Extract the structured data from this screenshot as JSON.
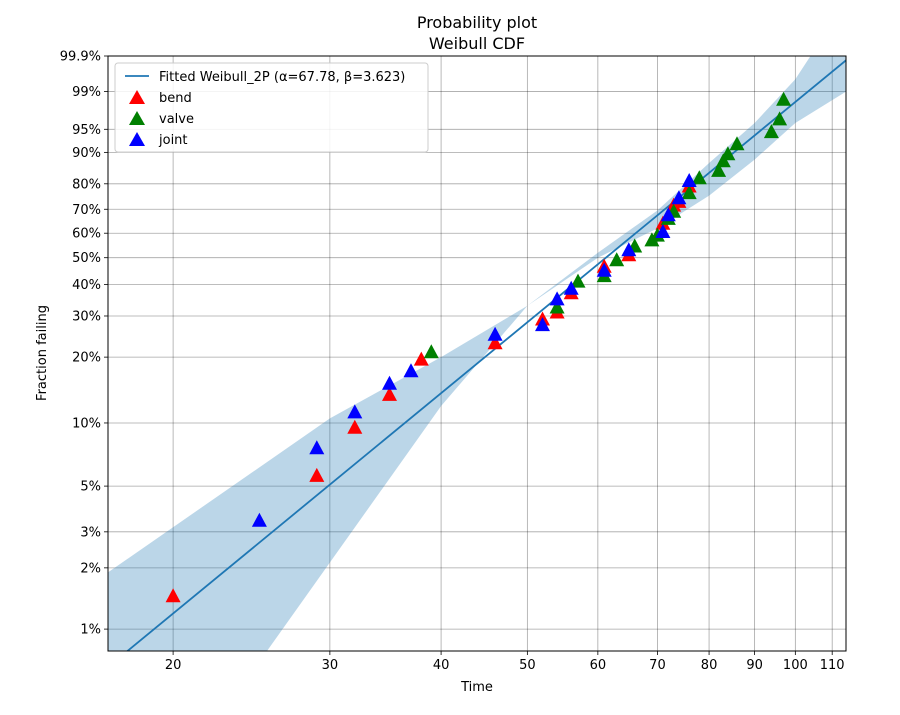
{
  "chart_data": {
    "type": "scatter",
    "title": "Probability plot",
    "subtitle": "Weibull CDF",
    "xlabel": "Time",
    "ylabel": "Fraction failing",
    "x_scale": "log",
    "y_scale": "weibull",
    "xlim": [
      16.9,
      114
    ],
    "ylim": [
      0.0078,
      0.999
    ],
    "grid": true,
    "legend_position": "top-left",
    "x_ticks": [
      {
        "value": 20,
        "label": "20"
      },
      {
        "value": 30,
        "label": "30"
      },
      {
        "value": 40,
        "label": "40"
      },
      {
        "value": 50,
        "label": "50"
      },
      {
        "value": 60,
        "label": "60"
      },
      {
        "value": 70,
        "label": "70"
      },
      {
        "value": 80,
        "label": "80"
      },
      {
        "value": 90,
        "label": "90"
      },
      {
        "value": 100,
        "label": "100"
      },
      {
        "value": 110,
        "label": "110"
      }
    ],
    "y_ticks": [
      {
        "value": 0.01,
        "label": "1%"
      },
      {
        "value": 0.02,
        "label": "2%"
      },
      {
        "value": 0.03,
        "label": "3%"
      },
      {
        "value": 0.05,
        "label": "5%"
      },
      {
        "value": 0.1,
        "label": "10%"
      },
      {
        "value": 0.2,
        "label": "20%"
      },
      {
        "value": 0.3,
        "label": "30%"
      },
      {
        "value": 0.4,
        "label": "40%"
      },
      {
        "value": 0.5,
        "label": "50%"
      },
      {
        "value": 0.6,
        "label": "60%"
      },
      {
        "value": 0.7,
        "label": "70%"
      },
      {
        "value": 0.8,
        "label": "80%"
      },
      {
        "value": 0.9,
        "label": "90%"
      },
      {
        "value": 0.95,
        "label": "95%"
      },
      {
        "value": 0.99,
        "label": "99%"
      },
      {
        "value": 0.999,
        "label": "99.9%"
      }
    ],
    "fit": {
      "name": "Fitted Weibull_2P (α=67.78, β=3.623)",
      "alpha": 67.78,
      "beta": 3.623,
      "color": "#1f77b4",
      "band_color": "#1f77b4",
      "band_lower": [
        [
          16.9,
          0.0078
        ],
        [
          25.5,
          0.0078
        ],
        [
          40,
          0.12
        ],
        [
          50,
          0.33
        ],
        [
          60,
          0.5
        ],
        [
          70,
          0.62
        ],
        [
          80,
          0.755
        ],
        [
          90,
          0.88
        ],
        [
          100,
          0.96
        ],
        [
          114,
          0.99
        ]
      ],
      "band_upper": [
        [
          16.9,
          0.019
        ],
        [
          30,
          0.105
        ],
        [
          40,
          0.2
        ],
        [
          50,
          0.33
        ],
        [
          60,
          0.52
        ],
        [
          70,
          0.695
        ],
        [
          80,
          0.87
        ],
        [
          90,
          0.96
        ],
        [
          100,
          0.995
        ],
        [
          104,
          0.999
        ],
        [
          114,
          0.999
        ]
      ]
    },
    "series": [
      {
        "name": "bend",
        "color": "#ff0000",
        "marker": "triangle",
        "points": [
          [
            20,
            0.0145
          ],
          [
            29,
            0.056
          ],
          [
            32,
            0.095
          ],
          [
            35,
            0.135
          ],
          [
            38,
            0.195
          ],
          [
            46,
            0.23
          ],
          [
            52,
            0.29
          ],
          [
            54,
            0.31
          ],
          [
            56,
            0.37
          ],
          [
            61,
            0.465
          ],
          [
            65,
            0.51
          ],
          [
            71,
            0.64
          ],
          [
            73,
            0.715
          ],
          [
            74,
            0.73
          ],
          [
            76,
            0.79
          ]
        ]
      },
      {
        "name": "valve",
        "color": "#008000",
        "marker": "triangle",
        "points": [
          [
            39,
            0.21
          ],
          [
            54,
            0.325
          ],
          [
            57,
            0.41
          ],
          [
            61,
            0.43
          ],
          [
            63,
            0.49
          ],
          [
            66,
            0.545
          ],
          [
            69,
            0.57
          ],
          [
            70,
            0.59
          ],
          [
            72,
            0.66
          ],
          [
            73,
            0.69
          ],
          [
            76,
            0.765
          ],
          [
            78,
            0.82
          ],
          [
            82,
            0.845
          ],
          [
            83,
            0.875
          ],
          [
            84,
            0.895
          ],
          [
            86,
            0.92
          ],
          [
            94,
            0.945
          ],
          [
            96,
            0.965
          ],
          [
            97,
            0.985
          ]
        ]
      },
      {
        "name": "joint",
        "color": "#0000ff",
        "marker": "triangle",
        "points": [
          [
            25,
            0.034
          ],
          [
            29,
            0.076
          ],
          [
            32,
            0.112
          ],
          [
            35,
            0.152
          ],
          [
            37,
            0.173
          ],
          [
            46,
            0.25
          ],
          [
            52,
            0.275
          ],
          [
            54,
            0.35
          ],
          [
            56,
            0.385
          ],
          [
            61,
            0.45
          ],
          [
            65,
            0.53
          ],
          [
            71,
            0.605
          ],
          [
            72,
            0.675
          ],
          [
            74,
            0.745
          ],
          [
            76,
            0.81
          ]
        ]
      }
    ]
  }
}
